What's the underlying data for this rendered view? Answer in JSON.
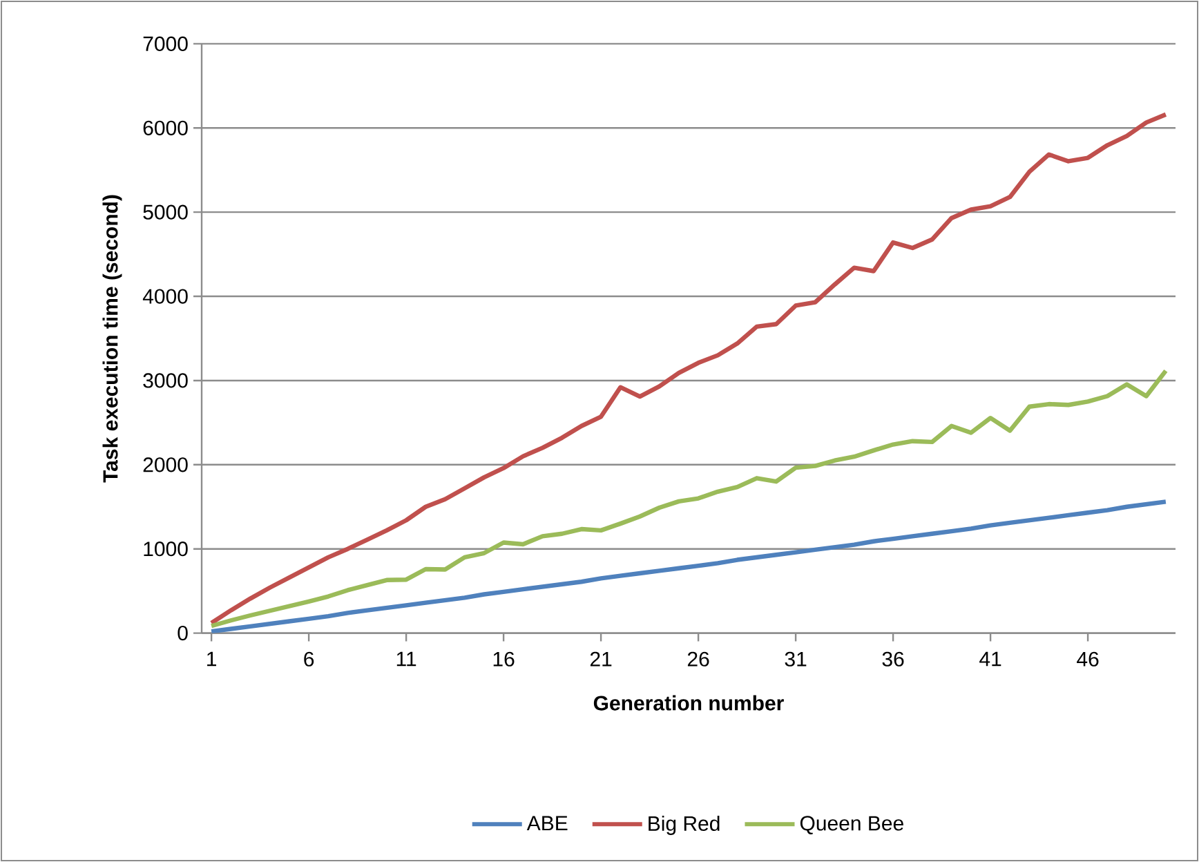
{
  "chart_data": {
    "type": "line",
    "xlabel": "Generation number",
    "ylabel": "Task execution time (second)",
    "categories": [
      "1",
      null,
      null,
      null,
      null,
      "6",
      null,
      null,
      null,
      null,
      "11",
      null,
      null,
      null,
      null,
      "16",
      null,
      null,
      null,
      null,
      "21",
      null,
      null,
      null,
      null,
      "26",
      null,
      null,
      null,
      null,
      "31",
      null,
      null,
      null,
      null,
      "36",
      null,
      null,
      null,
      null,
      "41",
      null,
      null,
      null,
      null,
      "46",
      null,
      null,
      null,
      null
    ],
    "series": [
      {
        "name": "ABE",
        "color": "#4f81bd",
        "values": [
          20,
          50,
          80,
          110,
          140,
          170,
          200,
          240,
          270,
          300,
          330,
          360,
          390,
          420,
          460,
          490,
          520,
          550,
          580,
          610,
          650,
          680,
          710,
          740,
          770,
          800,
          830,
          870,
          900,
          930,
          960,
          990,
          1020,
          1050,
          1090,
          1120,
          1150,
          1180,
          1210,
          1240,
          1280,
          1310,
          1340,
          1370,
          1400,
          1430,
          1460,
          1500,
          1530,
          1560
        ]
      },
      {
        "name": "Big Red",
        "color": "#c0504d",
        "values": [
          120,
          270,
          410,
          540,
          660,
          780,
          900,
          1000,
          1110,
          1220,
          1340,
          1500,
          1590,
          1720,
          1850,
          1960,
          2100,
          2200,
          2320,
          2460,
          2570,
          2920,
          2810,
          2930,
          3090,
          3210,
          3300,
          3440,
          3640,
          3670,
          3890,
          3930,
          4140,
          4340,
          4300,
          4640,
          4575,
          4675,
          4930,
          5030,
          5070,
          5180,
          5480,
          5685,
          5605,
          5645,
          5795,
          5905,
          6065,
          6160
        ]
      },
      {
        "name": "Queen Bee",
        "color": "#9bbb59",
        "values": [
          85,
          150,
          210,
          265,
          320,
          375,
          435,
          510,
          570,
          630,
          635,
          760,
          755,
          900,
          950,
          1075,
          1055,
          1150,
          1180,
          1235,
          1220,
          1300,
          1385,
          1490,
          1565,
          1600,
          1680,
          1735,
          1840,
          1800,
          1965,
          1985,
          2050,
          2095,
          2170,
          2240,
          2280,
          2270,
          2460,
          2380,
          2555,
          2405,
          2690,
          2720,
          2710,
          2750,
          2815,
          2955,
          2815,
          3115
        ]
      }
    ],
    "ylim": [
      0,
      7000
    ],
    "yticks": [
      0,
      1000,
      2000,
      3000,
      4000,
      5000,
      6000,
      7000
    ],
    "grid": "y",
    "legend": "bottom",
    "marker": "none",
    "line_style": "solid"
  }
}
